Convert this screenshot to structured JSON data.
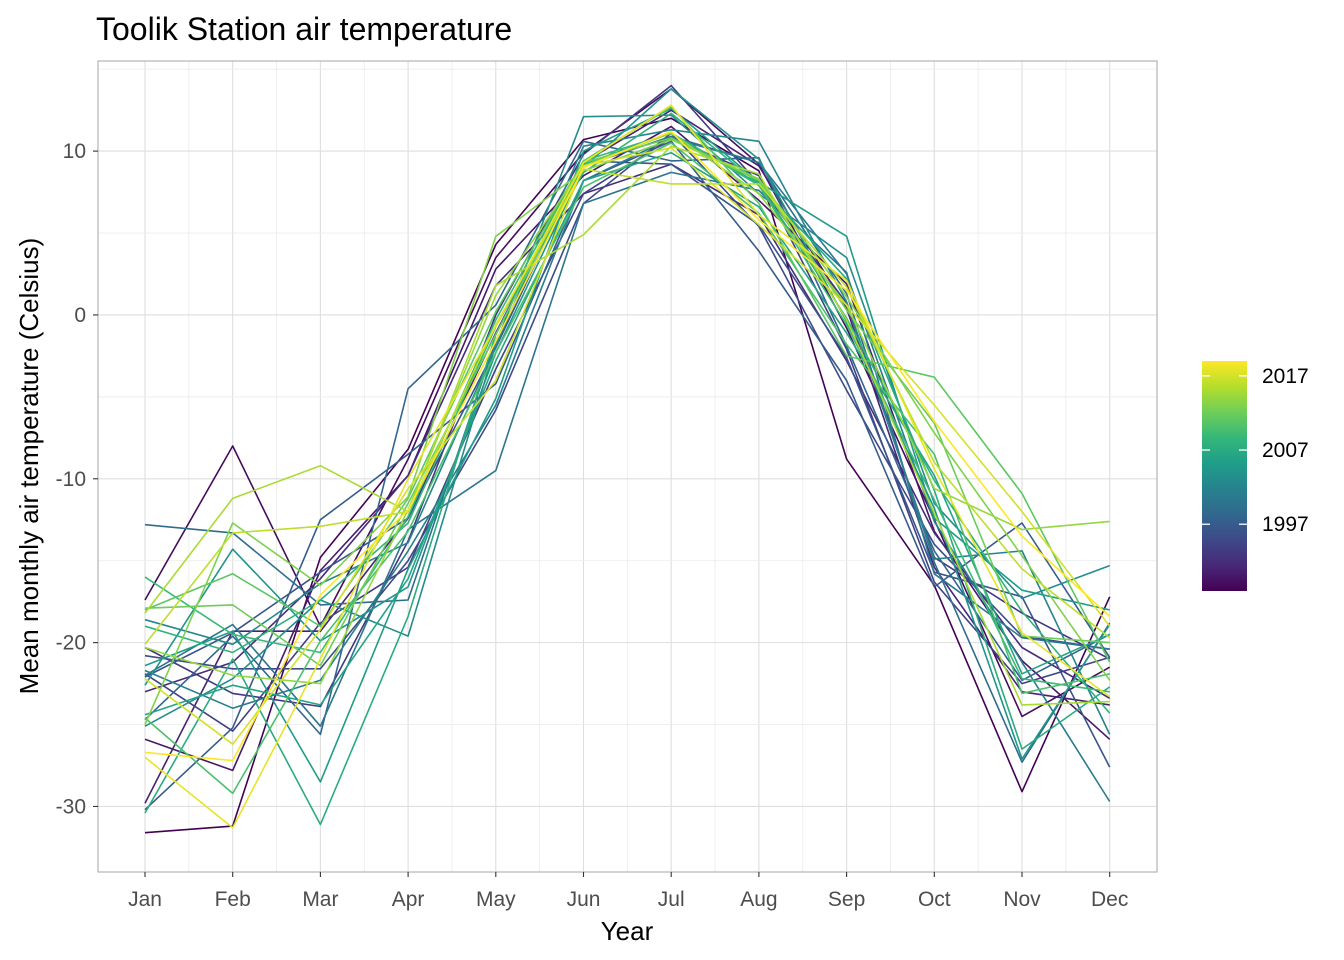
{
  "chart_data": {
    "type": "line",
    "title": "Toolik Station air temperature",
    "xlabel": "Year",
    "ylabel": "Mean monthly air temperature (Celsius)",
    "categories": [
      "Jan",
      "Feb",
      "Mar",
      "Apr",
      "May",
      "Jun",
      "Jul",
      "Aug",
      "Sep",
      "Oct",
      "Nov",
      "Dec"
    ],
    "ylim": [
      -34,
      15.5
    ],
    "y_ticks": [
      -30,
      -20,
      -10,
      0,
      10
    ],
    "y_tick_labels": [
      "-30",
      "-20",
      "-10",
      "0",
      "10"
    ],
    "grid": true,
    "color_scale": {
      "type": "viridis",
      "range": [
        1988,
        2019
      ],
      "ticks": [
        1997,
        2007,
        2017
      ],
      "tick_labels": [
        "1997",
        "2007",
        "2017"
      ],
      "position": "right",
      "colors": [
        "#440154",
        "#482878",
        "#3e4989",
        "#31688e",
        "#26828e",
        "#1f9e89",
        "#35b779",
        "#6ece58",
        "#b5de2b",
        "#fde725"
      ]
    },
    "series": [
      {
        "year": 1988,
        "values": [
          -31.6,
          -31.2,
          -14.8,
          -8.2,
          4.3,
          10.7,
          12.0,
          8.8,
          -8.8,
          -16.5,
          -29.1,
          -17.2
        ]
      },
      {
        "year": 1989,
        "values": [
          -17.4,
          -8.0,
          -19.0,
          -8.8,
          3.5,
          9.9,
          13.8,
          9.2,
          -0.8,
          -12.5,
          -24.5,
          -21.5
        ]
      },
      {
        "year": 1990,
        "values": [
          -25.9,
          -27.8,
          -15.6,
          -9.8,
          2.8,
          8.5,
          11.5,
          7.0,
          1.9,
          -13.2,
          -21.1,
          -25.9
        ]
      },
      {
        "year": 1991,
        "values": [
          -29.8,
          -19.3,
          -19.3,
          -12.4,
          -1.1,
          9.3,
          12.5,
          9.1,
          0.4,
          -15.4,
          -23.0,
          -23.8
        ]
      },
      {
        "year": 1992,
        "values": [
          -23.0,
          -21.2,
          -16.1,
          -9.8,
          1.8,
          7.4,
          9.2,
          6.1,
          -2.8,
          -13.3,
          -20.3,
          -23.4
        ]
      },
      {
        "year": 1993,
        "values": [
          -20.3,
          -23.1,
          -23.9,
          -13.8,
          0.0,
          9.8,
          14.0,
          8.0,
          0.7,
          -14.8,
          -18.2,
          -21.0
        ]
      },
      {
        "year": 1994,
        "values": [
          -21.9,
          -25.4,
          -18.8,
          -15.4,
          -3.3,
          7.4,
          10.8,
          8.5,
          -2.1,
          -16.3,
          -22.5,
          -20.9
        ]
      },
      {
        "year": 1995,
        "values": [
          -20.8,
          -21.6,
          -21.6,
          -15.0,
          -5.8,
          6.8,
          11.1,
          5.4,
          -4.6,
          -14.0,
          -19.6,
          -20.4
        ]
      },
      {
        "year": 1996,
        "values": [
          -22.1,
          -19.4,
          -15.7,
          -12.4,
          -2.0,
          9.4,
          9.2,
          5.5,
          -2.6,
          -15.7,
          -17.2,
          -27.6
        ]
      },
      {
        "year": 1997,
        "values": [
          -30.2,
          -25.2,
          -12.5,
          -8.5,
          -4.2,
          8.2,
          10.6,
          3.9,
          -4.0,
          -16.6,
          -12.7,
          -20.9
        ]
      },
      {
        "year": 1998,
        "values": [
          -24.7,
          -19.6,
          -25.6,
          -4.5,
          0.6,
          10.6,
          9.4,
          9.6,
          -1.9,
          -14.4,
          -22.3,
          -19.5
        ]
      },
      {
        "year": 1999,
        "values": [
          -12.8,
          -13.3,
          -17.7,
          -17.4,
          -1.6,
          9.1,
          10.9,
          9.3,
          1.3,
          -15.1,
          -27.3,
          -18.8
        ]
      },
      {
        "year": 2000,
        "values": [
          -22.0,
          -18.9,
          -25.1,
          -13.1,
          -9.5,
          6.8,
          8.7,
          7.6,
          2.6,
          -15.8,
          -19.7,
          -20.4
        ]
      },
      {
        "year": 2001,
        "values": [
          -21.7,
          -24.0,
          -22.3,
          -14.4,
          -5.5,
          8.2,
          10.8,
          9.3,
          2.5,
          -12.6,
          -21.2,
          -29.7
        ]
      },
      {
        "year": 2002,
        "values": [
          -18.6,
          -20.1,
          -16.4,
          -13.9,
          -1.9,
          10.3,
          11.3,
          10.6,
          0.8,
          -14.9,
          -14.4,
          -25.6
        ]
      },
      {
        "year": 2003,
        "values": [
          -25.1,
          -22.2,
          -17.4,
          -19.6,
          -1.8,
          12.1,
          12.2,
          7.4,
          3.5,
          -11.5,
          -17.3,
          -15.3
        ]
      },
      {
        "year": 2004,
        "values": [
          -22.6,
          -14.3,
          -19.9,
          -16.6,
          -2.3,
          9.0,
          13.8,
          9.5,
          -0.4,
          -11.8,
          -27.1,
          -18.9
        ]
      },
      {
        "year": 2005,
        "values": [
          -21.4,
          -19.3,
          -28.5,
          -15.5,
          -5.1,
          10.0,
          12.6,
          8.1,
          4.8,
          -12.4,
          -16.8,
          -18.0
        ]
      },
      {
        "year": 2006,
        "values": [
          -24.4,
          -22.6,
          -23.8,
          -16.1,
          -2.8,
          8.2,
          9.9,
          6.6,
          -1.1,
          -9.8,
          -21.9,
          -19.5
        ]
      },
      {
        "year": 2007,
        "values": [
          -30.4,
          -21.0,
          -31.1,
          -18.4,
          -1.2,
          9.2,
          11.1,
          8.0,
          2.2,
          -10.7,
          -26.5,
          -22.7
        ]
      },
      {
        "year": 2008,
        "values": [
          -19.0,
          -20.6,
          -17.4,
          -12.7,
          -0.7,
          8.7,
          12.3,
          8.0,
          -0.2,
          -10.1,
          -18.1,
          -24.3
        ]
      },
      {
        "year": 2009,
        "values": [
          -16.0,
          -19.5,
          -20.6,
          -12.3,
          -0.3,
          9.4,
          11.1,
          7.9,
          -0.6,
          -11.3,
          -22.2,
          -23.0
        ]
      },
      {
        "year": 2010,
        "values": [
          -24.6,
          -29.2,
          -19.9,
          -13.2,
          -2.3,
          7.8,
          10.5,
          6.2,
          -1.8,
          -8.5,
          -23.1,
          -21.9
        ]
      },
      {
        "year": 2011,
        "values": [
          -18.0,
          -15.8,
          -19.0,
          -11.2,
          0.2,
          9.4,
          12.7,
          6.8,
          -2.5,
          -3.8,
          -10.9,
          -21.2
        ]
      },
      {
        "year": 2012,
        "values": [
          -17.9,
          -17.7,
          -21.4,
          -11.5,
          -1.2,
          9.3,
          10.8,
          8.2,
          0.3,
          -6.6,
          -19.6,
          -20.0
        ]
      },
      {
        "year": 2013,
        "values": [
          -25.0,
          -12.7,
          -16.5,
          -11.1,
          4.8,
          8.8,
          10.7,
          8.3,
          1.1,
          -7.2,
          -14.7,
          -22.3
        ]
      },
      {
        "year": 2014,
        "values": [
          -20.3,
          -22.0,
          -22.5,
          -11.9,
          1.2,
          9.1,
          11.1,
          7.4,
          0.6,
          -10.6,
          -13.1,
          -12.6
        ]
      },
      {
        "year": 2015,
        "values": [
          -18.2,
          -11.2,
          -9.2,
          -12.0,
          1.8,
          4.9,
          10.3,
          8.6,
          -0.3,
          -12.1,
          -23.8,
          -23.6
        ]
      },
      {
        "year": 2016,
        "values": [
          -20.1,
          -13.3,
          -12.9,
          -12.0,
          -0.6,
          8.9,
          8.0,
          8.0,
          1.7,
          -9.0,
          -15.5,
          -19.7
        ]
      },
      {
        "year": 2017,
        "values": [
          -22.2,
          -26.2,
          -19.2,
          -10.6,
          -4.0,
          9.1,
          10.2,
          5.5,
          0.6,
          -5.5,
          -12.0,
          -19.0
        ]
      },
      {
        "year": 2018,
        "values": [
          -27.0,
          -31.3,
          -21.0,
          -10.0,
          -0.7,
          9.3,
          12.8,
          6.1,
          2.1,
          -9.4,
          -19.4,
          -23.3
        ]
      },
      {
        "year": 2019,
        "values": [
          -26.7,
          -27.2,
          -17.1,
          -11.9,
          -1.6,
          9.0,
          11.2,
          5.8,
          1.5,
          -6.5,
          -13.5,
          -18.4
        ]
      }
    ]
  }
}
